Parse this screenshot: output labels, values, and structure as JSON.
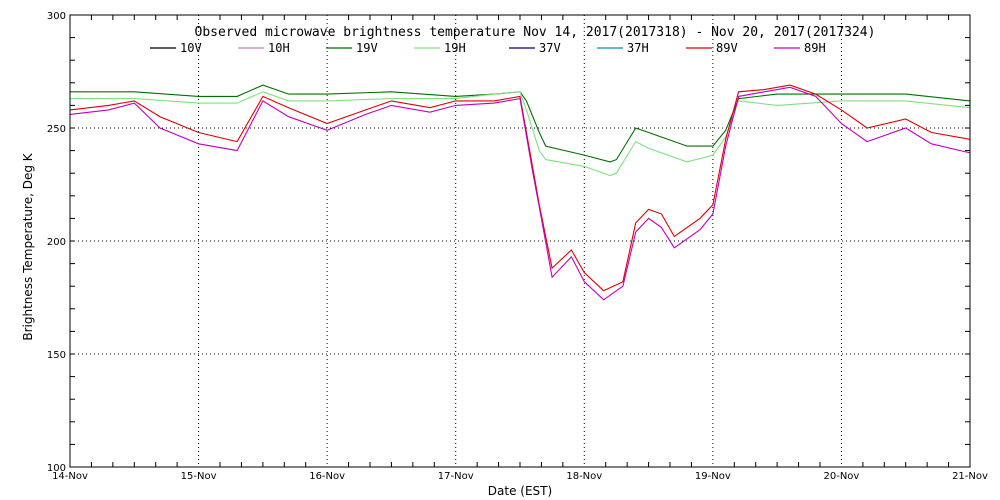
{
  "chart_data": {
    "type": "line",
    "title": "Observed microwave brightness temperature Nov 14, 2017(2017318) - Nov 20, 2017(2017324)",
    "xlabel": "Date (EST)",
    "ylabel": "Brightness Temperature, Deg K",
    "xlim": [
      0,
      7
    ],
    "ylim": [
      100,
      300
    ],
    "x_ticks": [
      0,
      1,
      2,
      3,
      4,
      5,
      6,
      7
    ],
    "x_tick_labels": [
      "14-Nov",
      "15-Nov",
      "16-Nov",
      "17-Nov",
      "18-Nov",
      "19-Nov",
      "20-Nov",
      "21-Nov"
    ],
    "y_ticks": [
      100,
      150,
      200,
      250,
      300
    ],
    "grid": "dotted",
    "legend": "top",
    "series": [
      {
        "name": "10V",
        "color": "#000000",
        "x": [],
        "y": []
      },
      {
        "name": "10H",
        "color": "#c080c0",
        "x": [],
        "y": []
      },
      {
        "name": "19V",
        "color": "#007000",
        "x": [
          0,
          0.5,
          1,
          1.3,
          1.5,
          1.7,
          2,
          2.5,
          3,
          3.3,
          3.5,
          3.55,
          3.65,
          3.7,
          4,
          4.2,
          4.25,
          4.4,
          4.5,
          4.8,
          5,
          5.1,
          5.2,
          5.5,
          6,
          6.5,
          7
        ],
        "y": [
          266,
          266,
          264,
          264,
          269,
          265,
          265,
          266,
          264,
          265,
          266,
          262,
          248,
          242,
          238,
          235,
          236,
          250,
          248,
          242,
          242,
          249,
          263,
          265,
          265,
          265,
          262
        ]
      },
      {
        "name": "19H",
        "color": "#80e080",
        "x": [
          0,
          0.5,
          1,
          1.3,
          1.5,
          1.7,
          2,
          2.5,
          3,
          3.3,
          3.5,
          3.55,
          3.65,
          3.7,
          4,
          4.2,
          4.25,
          4.4,
          4.5,
          4.8,
          5,
          5.1,
          5.2,
          5.5,
          6,
          6.5,
          7
        ],
        "y": [
          263,
          263,
          261,
          261,
          266,
          262,
          262,
          263,
          263,
          265,
          266,
          258,
          240,
          236,
          233,
          229,
          230,
          244,
          241,
          235,
          238,
          246,
          262,
          260,
          262,
          262,
          259
        ]
      },
      {
        "name": "37V",
        "color": "#000080",
        "x": [],
        "y": []
      },
      {
        "name": "37H",
        "color": "#0090b0",
        "x": [],
        "y": []
      },
      {
        "name": "89V",
        "color": "#e00000",
        "x": [
          0,
          0.3,
          0.5,
          0.7,
          1,
          1.3,
          1.5,
          1.7,
          2,
          2.3,
          2.5,
          2.8,
          3,
          3.3,
          3.5,
          3.6,
          3.65,
          3.75,
          3.9,
          4,
          4.15,
          4.3,
          4.4,
          4.5,
          4.6,
          4.7,
          4.9,
          5,
          5.1,
          5.2,
          5.4,
          5.6,
          5.8,
          6,
          6.2,
          6.5,
          6.7,
          7
        ],
        "y": [
          258,
          260,
          262,
          255,
          248,
          244,
          264,
          259,
          252,
          258,
          262,
          259,
          262,
          262,
          264,
          232,
          216,
          188,
          196,
          186,
          178,
          182,
          208,
          214,
          212,
          202,
          210,
          216,
          245,
          266,
          267,
          269,
          265,
          258,
          250,
          254,
          248,
          245
        ]
      },
      {
        "name": "89H",
        "color": "#c000c0",
        "x": [
          0,
          0.3,
          0.5,
          0.7,
          1,
          1.3,
          1.5,
          1.7,
          2,
          2.3,
          2.5,
          2.8,
          3,
          3.3,
          3.5,
          3.6,
          3.65,
          3.75,
          3.9,
          4,
          4.15,
          4.3,
          4.4,
          4.5,
          4.6,
          4.7,
          4.9,
          5,
          5.1,
          5.2,
          5.4,
          5.6,
          5.8,
          6,
          6.2,
          6.5,
          6.7,
          7
        ],
        "y": [
          256,
          258,
          261,
          250,
          243,
          240,
          262,
          255,
          249,
          256,
          260,
          257,
          260,
          261,
          263,
          230,
          215,
          184,
          193,
          182,
          174,
          180,
          204,
          210,
          206,
          197,
          205,
          212,
          242,
          264,
          266,
          268,
          264,
          252,
          244,
          250,
          243,
          239
        ]
      }
    ]
  }
}
